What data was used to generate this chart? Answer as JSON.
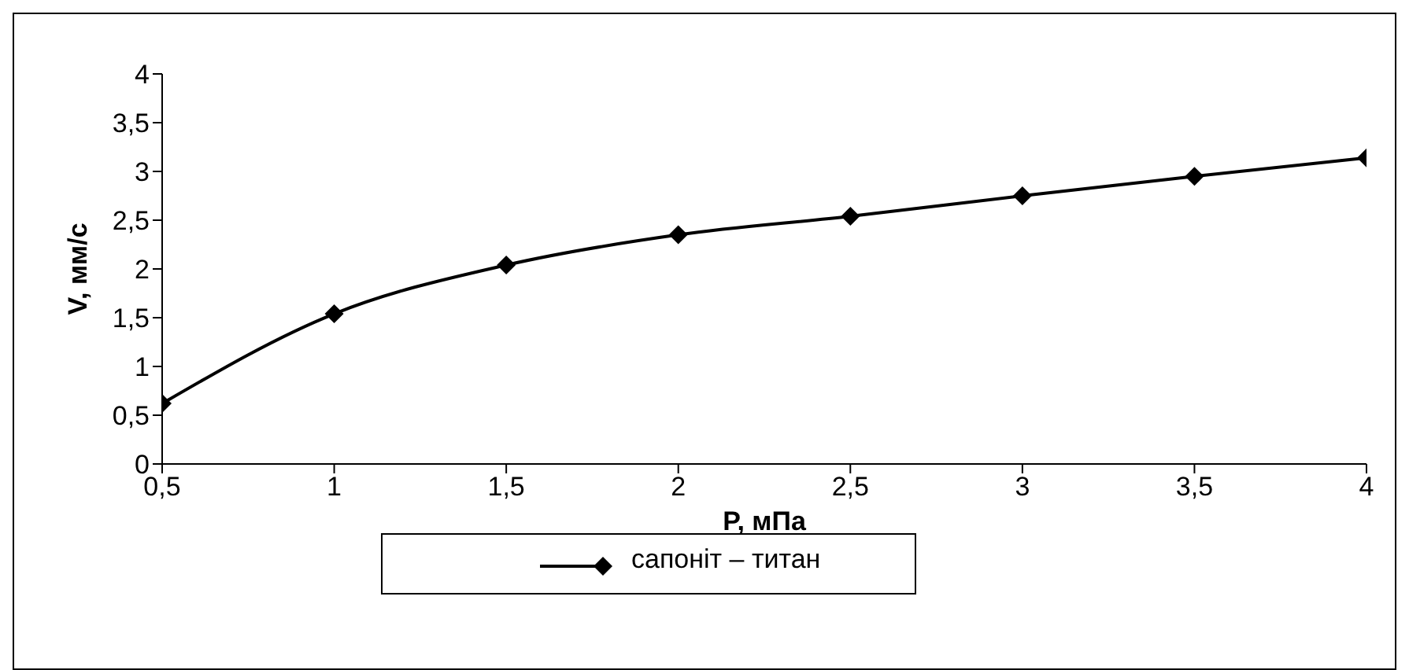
{
  "chart_data": {
    "type": "line",
    "xlabel": "P, мПа",
    "ylabel": "V, мм/с",
    "x": [
      0.5,
      1,
      1.5,
      2,
      2.5,
      3,
      3.5,
      4
    ],
    "series": [
      {
        "name": "сапоніт – титан",
        "color": "#000000",
        "values": [
          0.62,
          1.54,
          2.04,
          2.35,
          2.54,
          2.75,
          2.95,
          3.14
        ]
      }
    ],
    "xlim": [
      0.5,
      4
    ],
    "xticks": [
      {
        "value": 0.5,
        "label": "0,5"
      },
      1,
      {
        "value": 1.5,
        "label": "1,5"
      },
      2,
      {
        "value": 2.5,
        "label": "2,5"
      },
      3,
      {
        "value": 3.5,
        "label": "3,5"
      },
      4
    ],
    "ylim": [
      0,
      4
    ],
    "yticks": [
      0,
      {
        "value": 0.5,
        "label": "0,5"
      },
      1,
      {
        "value": 1.5,
        "label": "1,5"
      },
      2,
      {
        "value": 2.5,
        "label": "2,5"
      },
      3,
      {
        "value": 3.5,
        "label": "3,5"
      },
      4
    ],
    "grid": false,
    "legend": "bottom",
    "marker": "diamond",
    "line_style": "solid"
  }
}
